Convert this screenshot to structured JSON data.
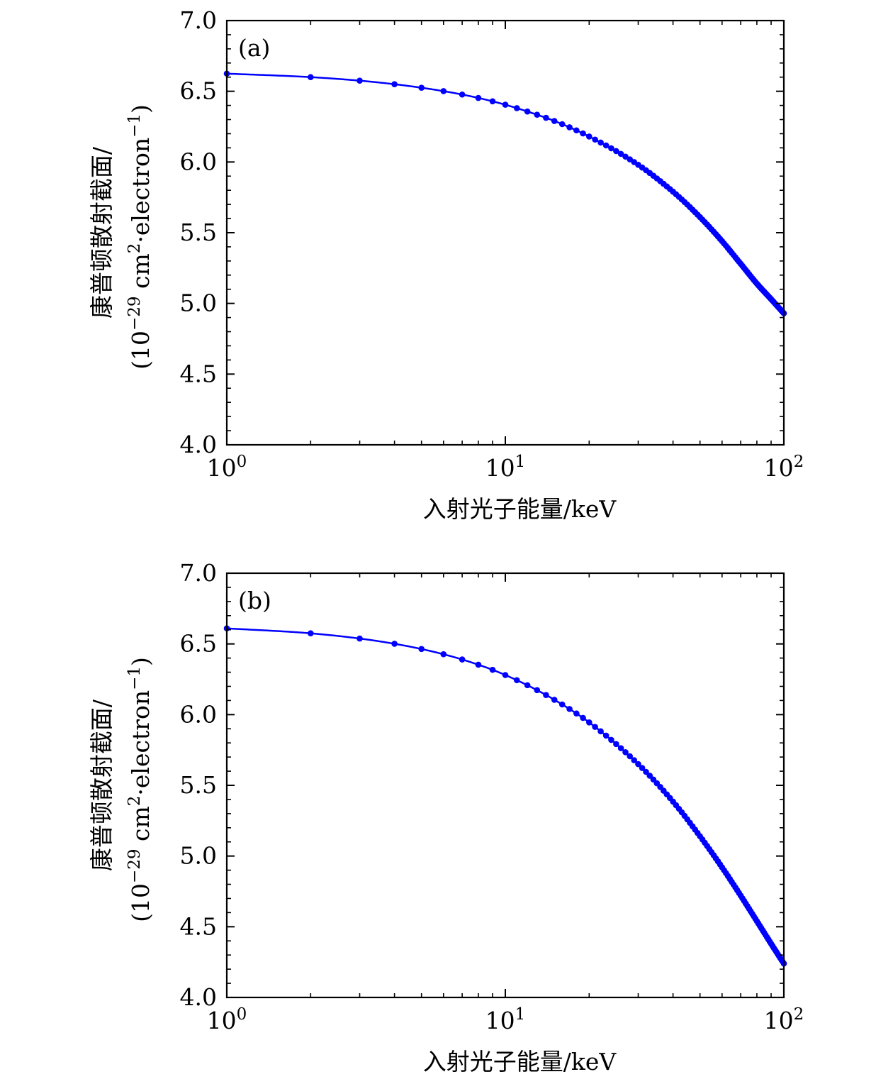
{
  "chart_data": [
    {
      "type": "line",
      "panel_label": "(a)",
      "xlabel": "入射光子能量/keV",
      "ylabel_line1": "康普顿散射截面/",
      "ylabel_line2_prefix": "(10",
      "ylabel_line2_exp": "−29",
      "ylabel_line2_mid": " cm",
      "ylabel_line2_exp2": "2",
      "ylabel_line2_suffix": "·electron",
      "ylabel_line2_exp3": "−1",
      "ylabel_line2_end": ")",
      "x_scale": "log",
      "xlim": [
        1,
        100
      ],
      "ylim": [
        4.0,
        7.0
      ],
      "x_ticks": [
        {
          "base": "10",
          "exp": "0",
          "value": 1
        },
        {
          "base": "10",
          "exp": "1",
          "value": 10
        },
        {
          "base": "10",
          "exp": "2",
          "value": 100
        }
      ],
      "y_ticks": [
        "4.0",
        "4.5",
        "5.0",
        "5.5",
        "6.0",
        "6.5",
        "7.0"
      ],
      "grid": false,
      "line_color": "#0000ff",
      "marker_color": "#0000ff",
      "series": [
        {
          "x": [
            1,
            2,
            3,
            4,
            5,
            6,
            7,
            8,
            9,
            10,
            12,
            15,
            20,
            30,
            40,
            50,
            60,
            70,
            80,
            90,
            100
          ],
          "y": [
            6.625,
            6.6,
            6.575,
            6.55,
            6.525,
            6.501,
            6.477,
            6.453,
            6.429,
            6.405,
            6.357,
            6.29,
            6.18,
            5.98,
            5.79,
            5.61,
            5.44,
            5.28,
            5.14,
            5.03,
            4.93
          ]
        }
      ]
    },
    {
      "type": "line",
      "panel_label": "(b)",
      "xlabel": "入射光子能量/keV",
      "ylabel_line1": "康普顿散射截面/",
      "ylabel_line2_prefix": "(10",
      "ylabel_line2_exp": "−29",
      "ylabel_line2_mid": " cm",
      "ylabel_line2_exp2": "2",
      "ylabel_line2_suffix": "·electron",
      "ylabel_line2_exp3": "−1",
      "ylabel_line2_end": ")",
      "x_scale": "log",
      "xlim": [
        1,
        100
      ],
      "ylim": [
        4.0,
        7.0
      ],
      "x_ticks": [
        {
          "base": "10",
          "exp": "0",
          "value": 1
        },
        {
          "base": "10",
          "exp": "1",
          "value": 10
        },
        {
          "base": "10",
          "exp": "2",
          "value": 100
        }
      ],
      "y_ticks": [
        "4.0",
        "4.5",
        "5.0",
        "5.5",
        "6.0",
        "6.5",
        "7.0"
      ],
      "grid": false,
      "line_color": "#0000ff",
      "marker_color": "#0000ff",
      "series": [
        {
          "x": [
            1,
            2,
            3,
            4,
            5,
            6,
            7,
            8,
            9,
            10,
            12,
            15,
            20,
            30,
            40,
            50,
            60,
            70,
            80,
            90,
            100
          ],
          "y": [
            6.61,
            6.575,
            6.538,
            6.501,
            6.464,
            6.427,
            6.39,
            6.353,
            6.317,
            6.28,
            6.208,
            6.105,
            5.945,
            5.65,
            5.385,
            5.14,
            4.92,
            4.72,
            4.54,
            4.38,
            4.24
          ]
        }
      ]
    }
  ]
}
